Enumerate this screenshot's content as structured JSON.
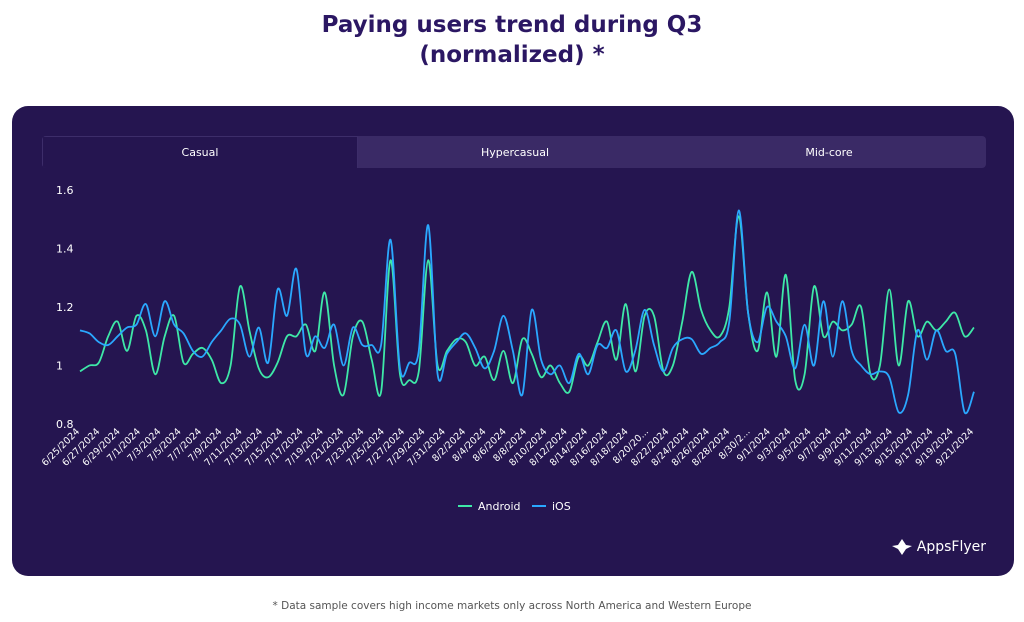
{
  "title": {
    "line1": "Paying users trend during Q3",
    "line2": "(normalized) *"
  },
  "tabs": [
    {
      "label": "Casual",
      "active": true
    },
    {
      "label": "Hypercasual",
      "active": false
    },
    {
      "label": "Mid-core",
      "active": false
    }
  ],
  "footnote": "* Data sample covers high income markets only across North America and Western Europe",
  "brand": "AppsFlyer",
  "colors": {
    "background": "#251550",
    "android": "#3ee8a8",
    "ios": "#2aa8ff",
    "title": "#2b1763"
  },
  "chart_data": {
    "type": "line",
    "title": "Paying users trend during Q3 (normalized) *",
    "ylim": [
      0.8,
      1.6
    ],
    "yticks": [
      0.8,
      1,
      1.2,
      1.4,
      1.6
    ],
    "ytick_labels": [
      "0.8",
      "1",
      "1.2",
      "1.4",
      "1.6"
    ],
    "grid": false,
    "legend_position": "bottom-center",
    "x_tick_labels": [
      "6/25/2024",
      "6/27/2024",
      "6/29/2024",
      "7/1/2024",
      "7/3/2024",
      "7/5/2024",
      "7/7/2024",
      "7/9/2024",
      "7/11/2024",
      "7/13/2024",
      "7/15/2024",
      "7/17/2024",
      "7/19/2024",
      "7/21/2024",
      "7/23/2024",
      "7/25/2024",
      "7/27/2024",
      "7/29/2024",
      "7/31/2024",
      "8/2/2024",
      "8/4/2024",
      "8/6/2024",
      "8/8/2024",
      "8/10/2024",
      "8/12/2024",
      "8/14/2024",
      "8/16/2024",
      "8/18/2024",
      "8/20/20...",
      "8/22/2024",
      "8/24/2024",
      "8/26/2024",
      "8/28/2024",
      "8/30/2...",
      "9/1/2024",
      "9/3/2024",
      "9/5/2024",
      "9/7/2024",
      "9/9/2024",
      "9/11/2024",
      "9/13/2024",
      "9/15/2024",
      "9/17/2024",
      "9/19/2024",
      "9/21/2024"
    ],
    "series": [
      {
        "name": "Android",
        "color": "#3ee8a8",
        "values": [
          0.98,
          1.0,
          1.01,
          1.1,
          1.15,
          1.05,
          1.17,
          1.12,
          0.97,
          1.1,
          1.17,
          1.01,
          1.04,
          1.06,
          1.02,
          0.94,
          1.0,
          1.27,
          1.12,
          0.99,
          0.96,
          1.01,
          1.1,
          1.1,
          1.14,
          1.05,
          1.25,
          1.0,
          0.9,
          1.1,
          1.15,
          1.02,
          0.91,
          1.36,
          0.97,
          0.95,
          0.98,
          1.36,
          1.0,
          1.05,
          1.09,
          1.08,
          1.0,
          1.03,
          0.95,
          1.05,
          0.94,
          1.09,
          1.04,
          0.96,
          1.0,
          0.94,
          0.91,
          1.03,
          1.0,
          1.08,
          1.15,
          1.02,
          1.21,
          0.98,
          1.17,
          1.17,
          0.98,
          1.0,
          1.15,
          1.32,
          1.19,
          1.12,
          1.1,
          1.2,
          1.51,
          1.18,
          1.05,
          1.25,
          1.03,
          1.31,
          0.95,
          0.97,
          1.27,
          1.1,
          1.15,
          1.12,
          1.14,
          1.2,
          0.97,
          1.0,
          1.26,
          1.0,
          1.22,
          1.1,
          1.15,
          1.12,
          1.15,
          1.18,
          1.1,
          1.13
        ]
      },
      {
        "name": "iOS",
        "color": "#2aa8ff",
        "values": [
          1.12,
          1.11,
          1.08,
          1.07,
          1.1,
          1.13,
          1.14,
          1.21,
          1.1,
          1.22,
          1.14,
          1.11,
          1.05,
          1.03,
          1.08,
          1.12,
          1.16,
          1.14,
          1.03,
          1.13,
          1.01,
          1.26,
          1.17,
          1.33,
          1.04,
          1.1,
          1.06,
          1.14,
          1.0,
          1.13,
          1.07,
          1.07,
          1.07,
          1.43,
          0.99,
          1.01,
          1.05,
          1.48,
          0.97,
          1.04,
          1.08,
          1.11,
          1.06,
          0.99,
          1.05,
          1.17,
          1.05,
          0.9,
          1.19,
          1.02,
          0.97,
          1.0,
          0.94,
          1.04,
          0.97,
          1.07,
          1.06,
          1.12,
          0.98,
          1.05,
          1.19,
          1.07,
          0.98,
          1.06,
          1.09,
          1.09,
          1.04,
          1.06,
          1.08,
          1.15,
          1.53,
          1.18,
          1.08,
          1.2,
          1.15,
          1.1,
          0.99,
          1.14,
          1.0,
          1.22,
          1.03,
          1.22,
          1.05,
          1.0,
          0.97,
          0.98,
          0.96,
          0.84,
          0.9,
          1.12,
          1.02,
          1.12,
          1.05,
          1.04,
          0.84,
          0.91
        ]
      }
    ]
  }
}
